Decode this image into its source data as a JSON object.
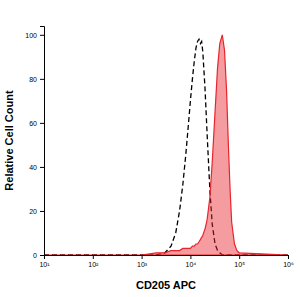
{
  "chart_data": {
    "type": "histogram",
    "x_label": "CD205 APC",
    "y_label": "Relative Cell Count",
    "log": "x",
    "xlim": [
      10,
      1000000
    ],
    "xticks": [
      {
        "value": 10,
        "label": "10¹"
      },
      {
        "value": 100,
        "label": "10²"
      },
      {
        "value": 1000,
        "label": "10³"
      },
      {
        "value": 10000,
        "label": "10⁴"
      },
      {
        "value": 100000,
        "label": "10⁵"
      },
      {
        "value": 1000000,
        "label": "10⁶"
      }
    ],
    "ylim": [
      0,
      104
    ],
    "yticks": [
      0,
      20,
      40,
      60,
      80,
      100
    ],
    "x": [
      10,
      1000,
      2000,
      3000,
      4000,
      5000,
      6000,
      7000,
      8000,
      9000,
      10000,
      11000,
      12000,
      13000,
      14000,
      15000,
      16000,
      17000,
      18000,
      20000,
      22000,
      25000,
      28000,
      32000,
      36000,
      40000,
      45000,
      50000,
      55000,
      60000,
      65000,
      70000,
      80000,
      90000,
      100000,
      1000000
    ],
    "series": [
      {
        "type": "line",
        "color": "#000000",
        "line_style": "dashed",
        "values": [
          0,
          0,
          0,
          1,
          4,
          10,
          20,
          32,
          45,
          58,
          70,
          80,
          88,
          94,
          97,
          98,
          96,
          97,
          92,
          75,
          55,
          30,
          14,
          5,
          2,
          1,
          0,
          0,
          0,
          0,
          0,
          0,
          0,
          0,
          0,
          0
        ]
      },
      {
        "type": "area",
        "color": "#e8242c",
        "line_style": "solid",
        "values": [
          0,
          0,
          1,
          1,
          2,
          2,
          2,
          3,
          3,
          3,
          3,
          4,
          4,
          5,
          5,
          6,
          7,
          8,
          9,
          12,
          16,
          26,
          42,
          65,
          85,
          96,
          100,
          93,
          75,
          50,
          30,
          15,
          5,
          2,
          1,
          0
        ]
      }
    ]
  }
}
